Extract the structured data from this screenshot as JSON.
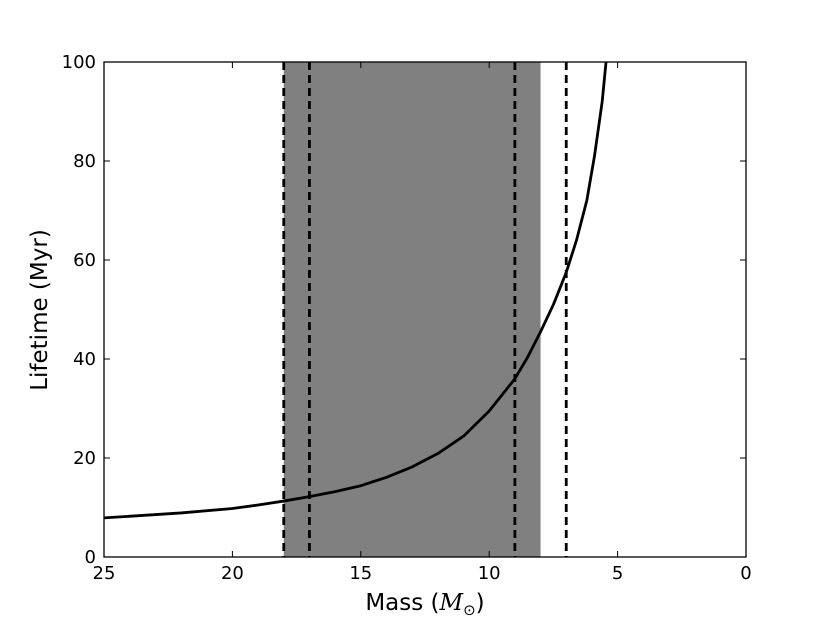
{
  "chart_data": {
    "type": "line",
    "xlabel": "Mass (",
    "xlabel_symbol": "M",
    "xlabel_subscript": "⊙",
    "xlabel_close": ")",
    "ylabel": "Lifetime (Myr)",
    "xlim": [
      25,
      0
    ],
    "ylim": [
      0,
      100
    ],
    "x_inverted": true,
    "grid": false,
    "xticks": [
      25,
      20,
      15,
      10,
      5,
      0
    ],
    "yticks": [
      0,
      20,
      40,
      60,
      80,
      100
    ],
    "xtick_labels": [
      "25",
      "20",
      "15",
      "10",
      "5",
      "0"
    ],
    "ytick_labels": [
      "0",
      "20",
      "40",
      "60",
      "80",
      "100"
    ],
    "shaded_region": {
      "x_from": 18,
      "x_to": 8,
      "color": "#808080"
    },
    "vertical_lines": [
      {
        "x": 18,
        "style": "dashed"
      },
      {
        "x": 17,
        "style": "dashed"
      },
      {
        "x": 9,
        "style": "dashed"
      },
      {
        "x": 7,
        "style": "dashed"
      }
    ],
    "series": [
      {
        "color": "#000000",
        "x": [
          25,
          22,
          20,
          19,
          18,
          17,
          16,
          15,
          14,
          13,
          12,
          11,
          10,
          9,
          8.5,
          8,
          7.5,
          7,
          6.6,
          6.2,
          5.9,
          5.6,
          5.45
        ],
        "y": [
          7.9,
          8.9,
          9.8,
          10.5,
          11.3,
          12.2,
          13.2,
          14.4,
          16.1,
          18.2,
          20.9,
          24.4,
          29.5,
          36.0,
          40.4,
          45.5,
          51.0,
          57.5,
          64.0,
          72.0,
          81.0,
          92.0,
          100.0
        ]
      }
    ]
  }
}
